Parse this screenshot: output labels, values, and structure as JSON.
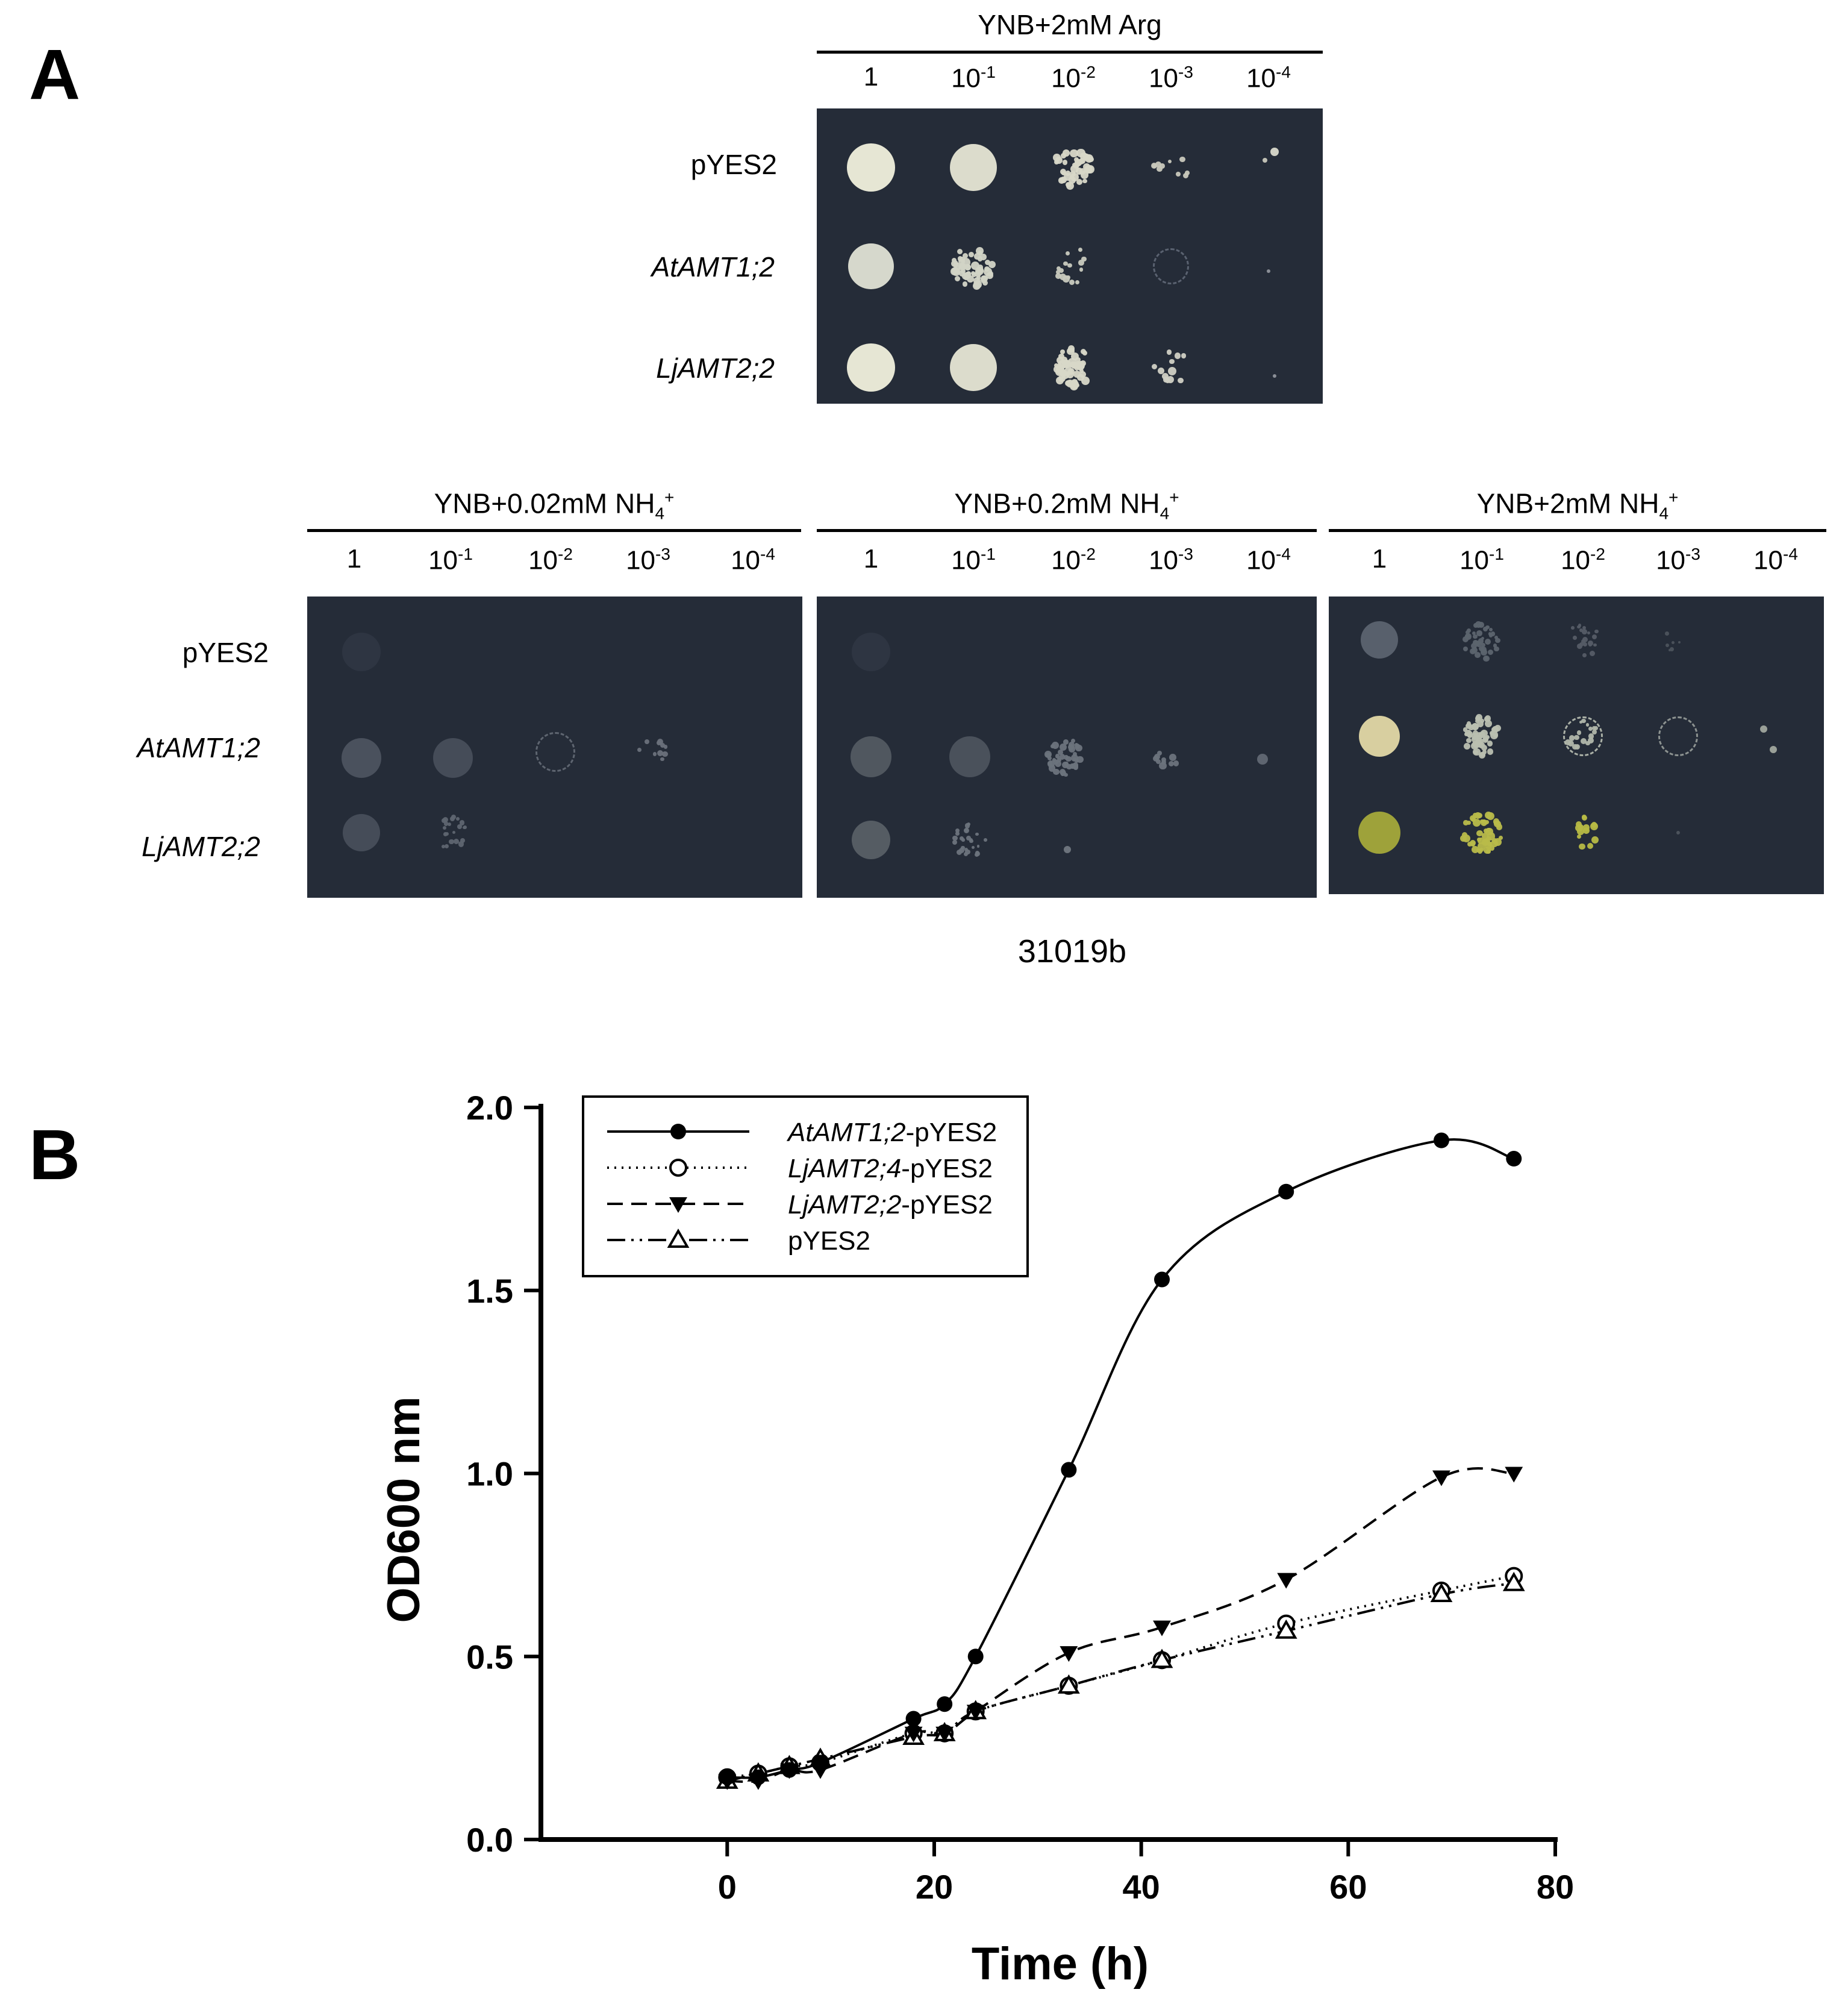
{
  "panelA": {
    "letter": "A",
    "arg": {
      "title_main": "YNB+2mM Arg",
      "dilutions": [
        {
          "base": "1",
          "exp": ""
        },
        {
          "base": "10",
          "exp": "-1"
        },
        {
          "base": "10",
          "exp": "-2"
        },
        {
          "base": "10",
          "exp": "-3"
        },
        {
          "base": "10",
          "exp": "-4"
        }
      ]
    },
    "nh4_plates": [
      {
        "title_main": "YNB+0.02mM NH",
        "sub": "4",
        "sup": "+"
      },
      {
        "title_main": "YNB+0.2mM NH",
        "sub": "4",
        "sup": "+"
      },
      {
        "title_main": "YNB+2mM NH",
        "sub": "4",
        "sup": "+"
      }
    ],
    "rows": [
      {
        "label": "pYES2",
        "italic": false
      },
      {
        "label": "AtAMT1;2",
        "italic": true
      },
      {
        "label": "LjAMT2;2",
        "italic": true
      }
    ],
    "strain": "31019b"
  },
  "panelB": {
    "letter": "B",
    "chart_data": {
      "type": "line",
      "xlabel": "Time (h)",
      "ylabel": "OD600 nm",
      "xlim": [
        -18,
        80
      ],
      "ylim": [
        0,
        2.0
      ],
      "xticks": [
        0,
        20,
        40,
        60,
        80
      ],
      "yticks": [
        0.0,
        0.5,
        1.0,
        1.5,
        2.0
      ],
      "ytick_labels": [
        "0.0",
        "0.5",
        "1.0",
        "1.5",
        "2.0"
      ],
      "legend_position": "top-left",
      "series": [
        {
          "name_italic": "AtAMT1;2",
          "name_suffix": "-pYES2",
          "marker": "filled-circle",
          "dash": "solid",
          "x": [
            0,
            3,
            6,
            9,
            18,
            21,
            24,
            33,
            42,
            54,
            69,
            76
          ],
          "y": [
            0.17,
            0.17,
            0.19,
            0.21,
            0.33,
            0.37,
            0.5,
            1.01,
            1.53,
            1.77,
            1.91,
            1.86
          ]
        },
        {
          "name_italic": "LjAMT2;4",
          "name_suffix": "-pYES2",
          "marker": "open-circle",
          "dash": "dotted",
          "x": [
            0,
            3,
            6,
            9,
            18,
            21,
            24,
            33,
            42,
            54,
            69,
            76
          ],
          "y": [
            0.17,
            0.18,
            0.2,
            0.21,
            0.29,
            0.29,
            0.35,
            0.42,
            0.49,
            0.59,
            0.68,
            0.72
          ]
        },
        {
          "name_italic": "LjAMT2;2",
          "name_suffix": "-pYES2",
          "marker": "filled-triangle-down",
          "dash": "dashed",
          "x": [
            0,
            3,
            6,
            9,
            18,
            21,
            24,
            33,
            42,
            54,
            69,
            76
          ],
          "y": [
            0.16,
            0.16,
            0.19,
            0.19,
            0.29,
            0.29,
            0.35,
            0.51,
            0.58,
            0.71,
            0.99,
            1.0
          ]
        },
        {
          "name_italic": "",
          "name_suffix": "pYES2",
          "marker": "open-triangle-up",
          "dash": "dash-dot-dot",
          "x": [
            0,
            3,
            6,
            9,
            18,
            21,
            24,
            33,
            42,
            54,
            69,
            76
          ],
          "y": [
            0.16,
            0.18,
            0.2,
            0.22,
            0.28,
            0.29,
            0.35,
            0.42,
            0.49,
            0.57,
            0.67,
            0.7
          ]
        }
      ]
    }
  }
}
